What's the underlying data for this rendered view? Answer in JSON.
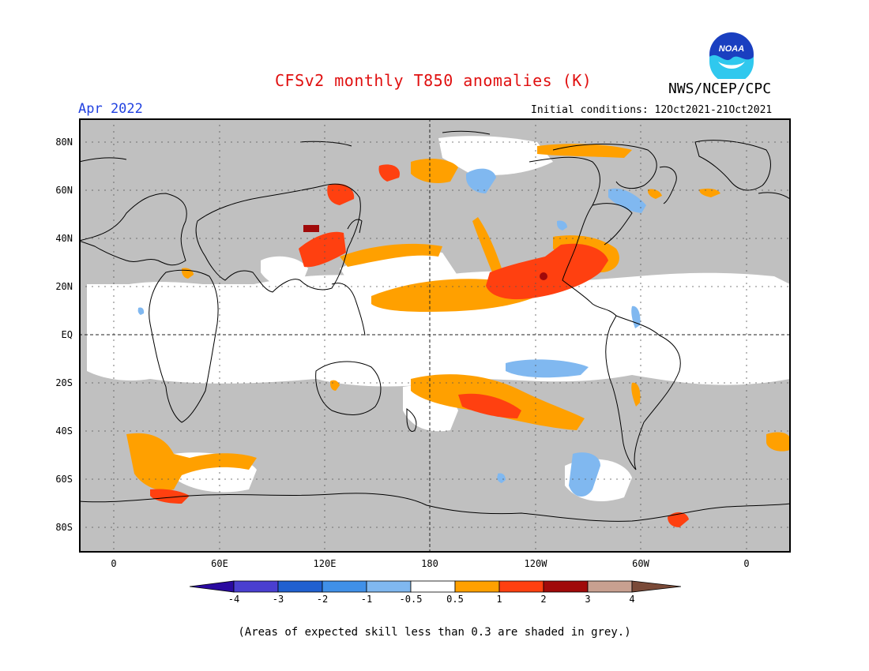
{
  "title": "CFSv2 monthly T850 anomalies (K)",
  "agency": "NWS/NCEP/CPC",
  "logo_text": "NOAA",
  "month": "Apr 2022",
  "initial_conditions": "Initial conditions: 12Oct2021-21Oct2021",
  "footnote": "(Areas of expected skill less than 0.3 are shaded in grey.)",
  "lat_labels": [
    "80N",
    "60N",
    "40N",
    "20N",
    "EQ",
    "20S",
    "40S",
    "60S",
    "80S"
  ],
  "lon_labels": [
    "0",
    "60E",
    "120E",
    "180",
    "120W",
    "60W",
    "0"
  ],
  "colorbar": {
    "labels": [
      "-4",
      "-3",
      "-2",
      "-1",
      "-0.5",
      "0.5",
      "1",
      "2",
      "3",
      "4"
    ],
    "colors": [
      "#2a0aa0",
      "#4a3fd0",
      "#2060d0",
      "#4090e8",
      "#80b8f0",
      "#ffffff",
      "#ffa000",
      "#ff4010",
      "#a00a0a",
      "#c8a090",
      "#7a4a38"
    ]
  },
  "colors": {
    "grey_low_skill": "#c0c0c0",
    "near_zero": "#ffffff",
    "anom_0_5_1": "#ffa000",
    "anom_1_2": "#ff4010",
    "anom_2_3": "#a00a0a",
    "anom_neg_1_0_5": "#80b8f0",
    "title_red": "#e01010",
    "month_blue": "#2040e0"
  }
}
